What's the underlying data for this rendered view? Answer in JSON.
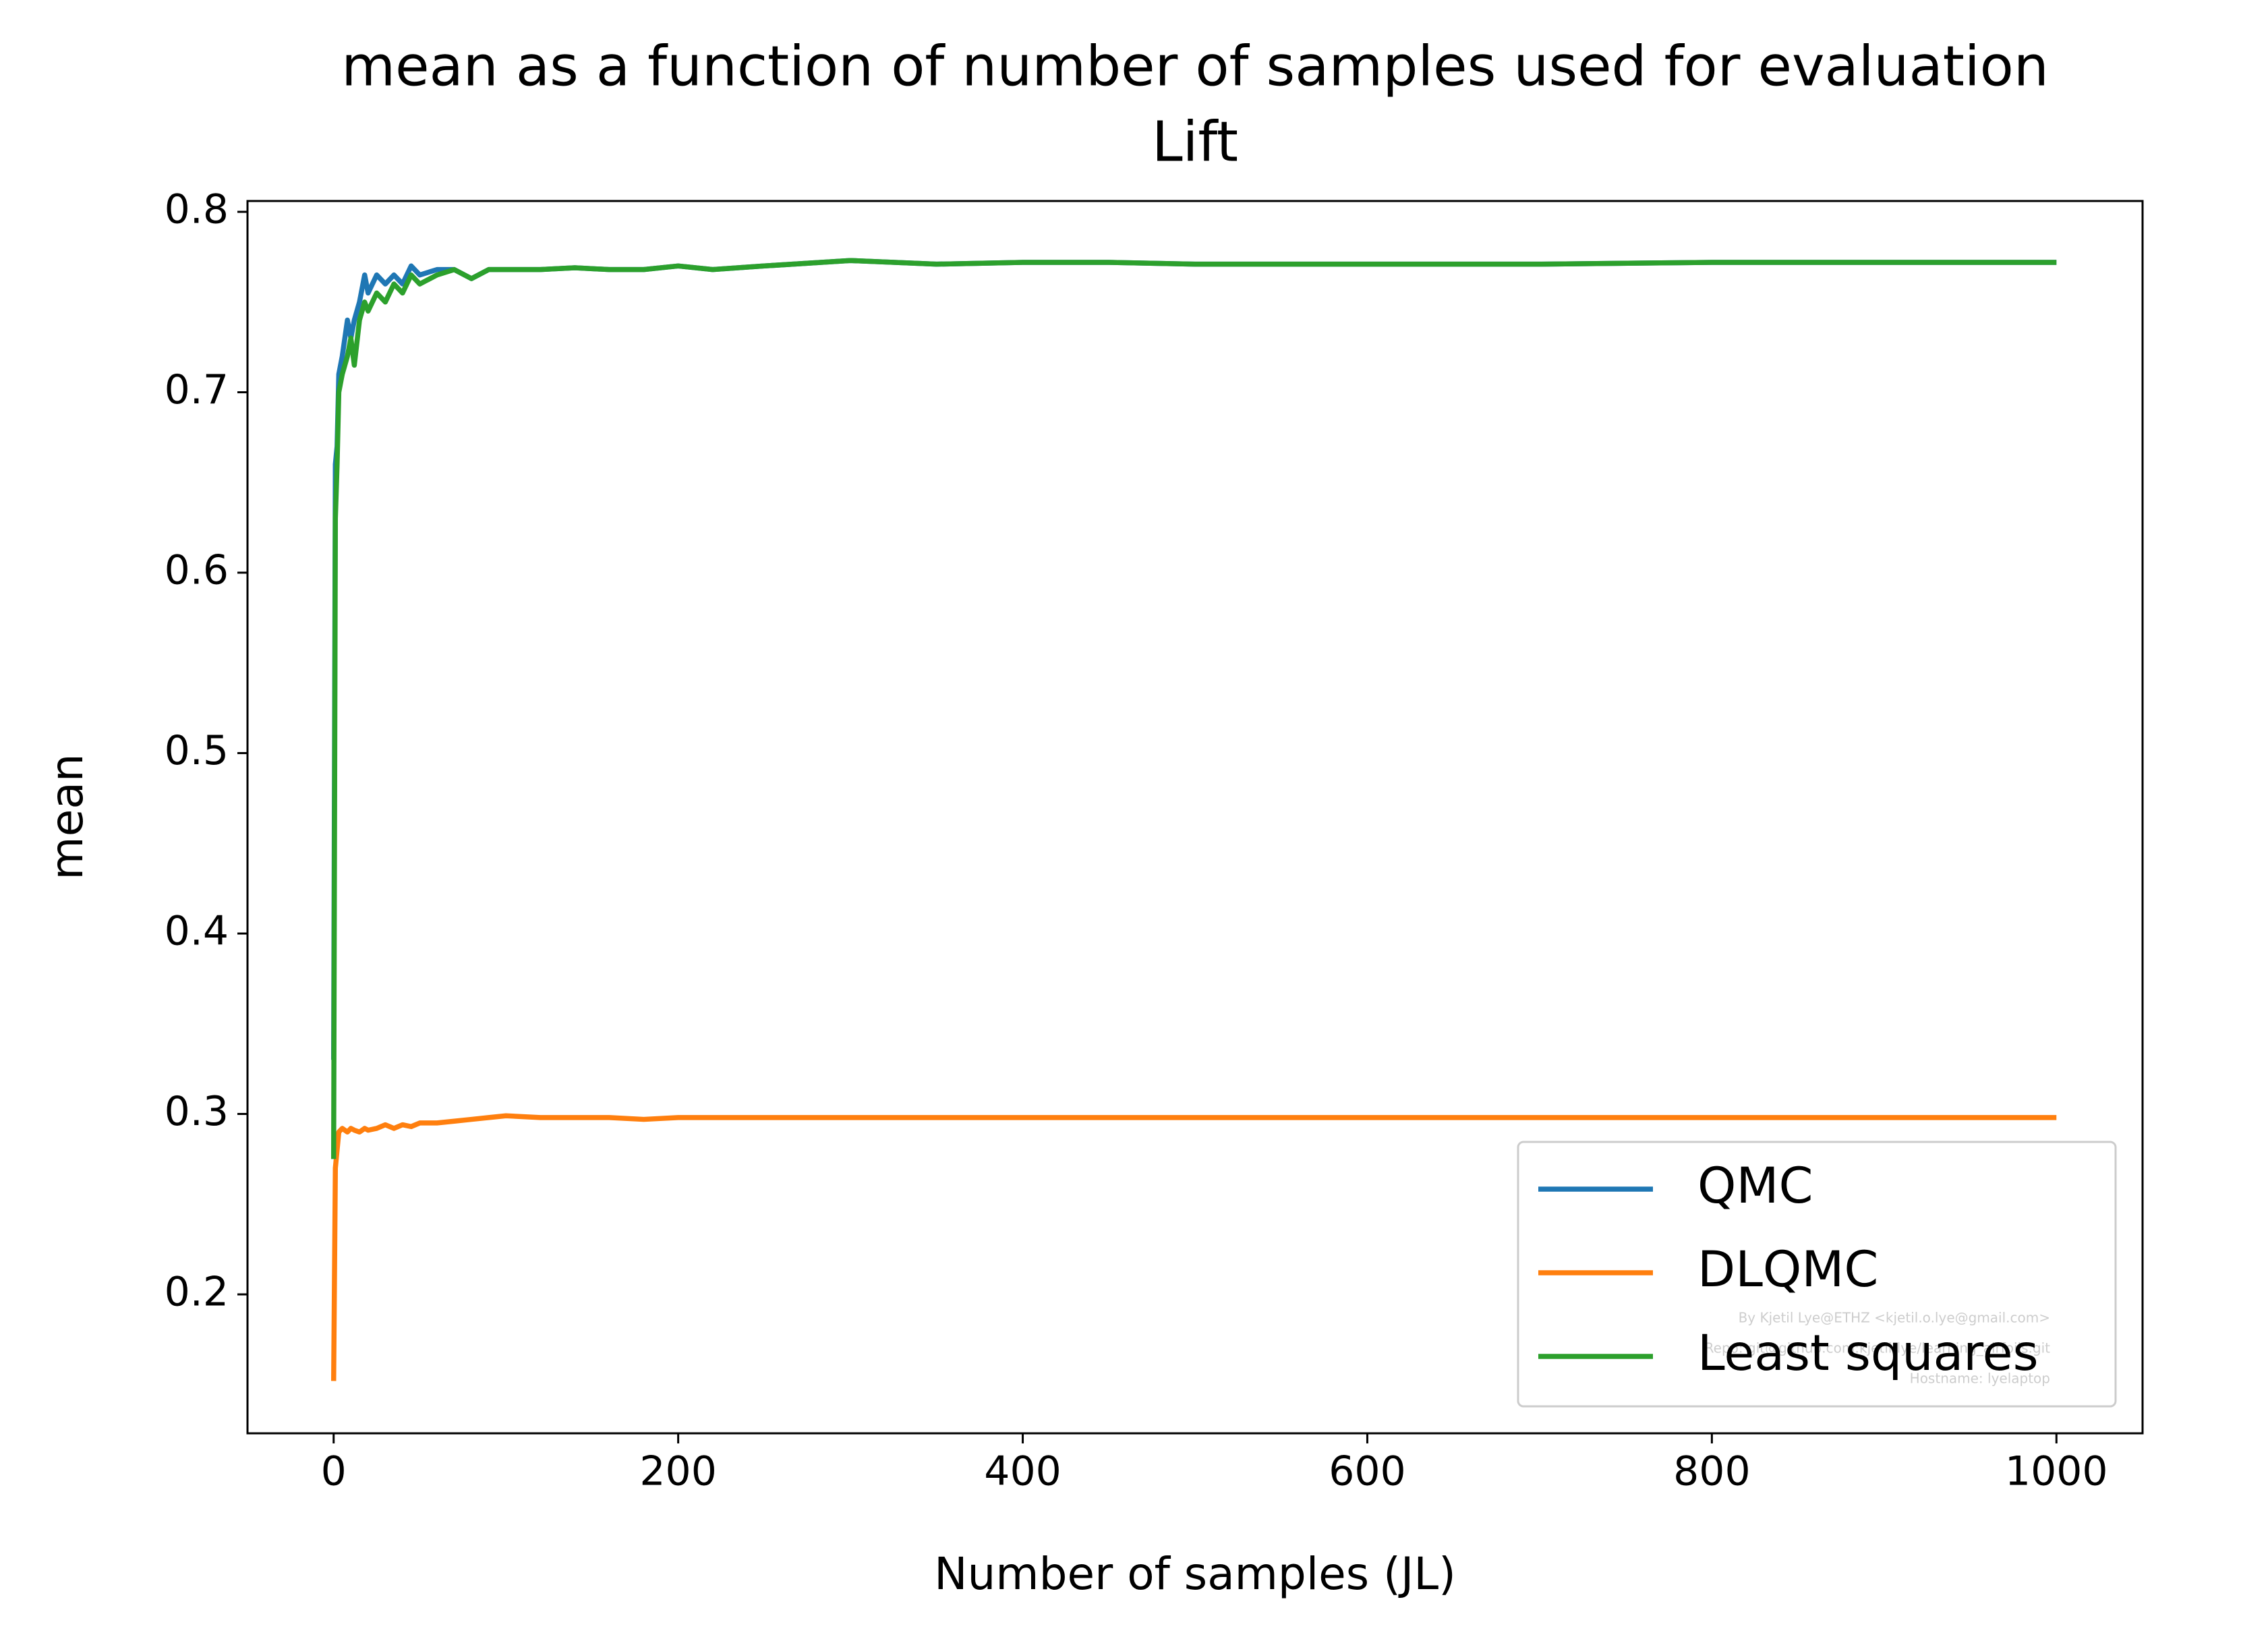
{
  "chart_data": {
    "type": "line",
    "title": "mean as a function of number of samples used for evaluation",
    "subtitle": "Lift",
    "xlabel": "Number of samples (JL)",
    "ylabel": "mean",
    "x": [
      0,
      1,
      2,
      3,
      5,
      8,
      10,
      12,
      15,
      18,
      20,
      25,
      30,
      35,
      40,
      45,
      50,
      60,
      70,
      80,
      90,
      100,
      120,
      140,
      160,
      180,
      200,
      220,
      250,
      300,
      350,
      400,
      450,
      500,
      600,
      700,
      800,
      900,
      1000
    ],
    "series": [
      {
        "name": "QMC",
        "color": "#1f77b4",
        "values": [
          0.33,
          0.66,
          0.67,
          0.71,
          0.72,
          0.74,
          0.73,
          0.74,
          0.75,
          0.765,
          0.755,
          0.765,
          0.76,
          0.765,
          0.76,
          0.77,
          0.765,
          0.768,
          0.768,
          0.763,
          0.768,
          0.768,
          0.768,
          0.769,
          0.768,
          0.768,
          0.77,
          0.768,
          0.77,
          0.773,
          0.771,
          0.772,
          0.772,
          0.771,
          0.771,
          0.771,
          0.772,
          0.772,
          0.772
        ]
      },
      {
        "name": "DLQMC",
        "color": "#ff7f0e",
        "values": [
          0.152,
          0.27,
          0.28,
          0.29,
          0.292,
          0.29,
          0.292,
          0.291,
          0.29,
          0.292,
          0.291,
          0.292,
          0.294,
          0.292,
          0.294,
          0.293,
          0.295,
          0.295,
          0.296,
          0.297,
          0.298,
          0.299,
          0.298,
          0.298,
          0.298,
          0.297,
          0.298,
          0.298,
          0.298,
          0.298,
          0.298,
          0.298,
          0.298,
          0.298,
          0.298,
          0.298,
          0.298,
          0.298,
          0.298
        ]
      },
      {
        "name": "Least squares",
        "color": "#2ca02c",
        "values": [
          0.275,
          0.63,
          0.66,
          0.7,
          0.71,
          0.72,
          0.73,
          0.715,
          0.74,
          0.75,
          0.745,
          0.755,
          0.75,
          0.76,
          0.755,
          0.765,
          0.76,
          0.765,
          0.768,
          0.763,
          0.768,
          0.768,
          0.768,
          0.769,
          0.768,
          0.768,
          0.77,
          0.768,
          0.77,
          0.773,
          0.771,
          0.772,
          0.772,
          0.771,
          0.771,
          0.771,
          0.772,
          0.772,
          0.772
        ]
      }
    ],
    "xlim": [
      -50,
      1050
    ],
    "ylim": [
      0.123,
      0.806
    ],
    "xticks": [
      0,
      200,
      400,
      600,
      800,
      1000
    ],
    "yticks": [
      0.2,
      0.3,
      0.4,
      0.5,
      0.6,
      0.7,
      0.8
    ],
    "grid": false,
    "legend": "lower right",
    "annotations": [
      "By Kjetil Lye@ETHZ <kjetil.o.lye@gmail.com>",
      "Repo: git@github.com:kjetil-lye/learning_airfoils.git",
      "Hostname: lyelaptop"
    ]
  }
}
